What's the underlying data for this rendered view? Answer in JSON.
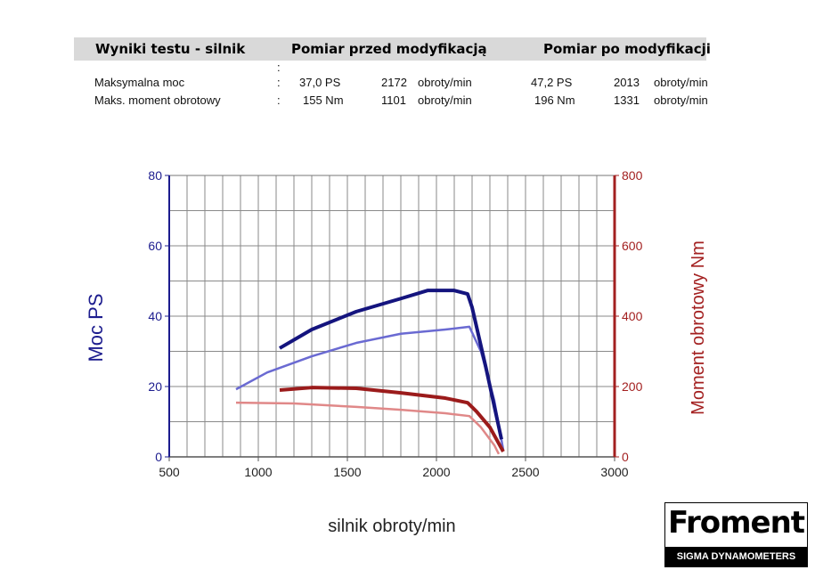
{
  "table": {
    "headers": [
      "Wyniki testu - silnik",
      "Pomiar przed modyfikacją",
      "Pomiar po modyfikacji"
    ],
    "marker": ":",
    "rows": [
      [
        "Maksymalna moc",
        ":",
        "37,0 PS",
        "2172",
        "obroty/min",
        "47,2 PS",
        "2013",
        "obroty/min"
      ],
      [
        "Maks. moment obrotowy",
        ":",
        "155 Nm",
        "1101",
        "obroty/min",
        "196 Nm",
        "1331",
        "obroty/min"
      ]
    ]
  },
  "chart_data": {
    "type": "line",
    "xlabel": "silnik obroty/min",
    "ylabel": "Moc PS",
    "y2label": "Moment obrotowy Nm",
    "xlim": [
      500,
      3000
    ],
    "xticks": [
      500,
      1000,
      1500,
      2000,
      2500,
      3000
    ],
    "ylim": [
      0,
      80
    ],
    "yticks": [
      0,
      20,
      40,
      60,
      80
    ],
    "y2lim": [
      0,
      800
    ],
    "y2ticks": [
      0,
      200,
      400,
      600,
      800
    ],
    "grid": true,
    "xgrid": [
      600,
      700,
      800,
      900,
      1000,
      1100,
      1200,
      1300,
      1400,
      1500,
      1600,
      1700,
      1800,
      1900,
      2000,
      2100,
      2200,
      2300,
      2400,
      2500,
      2600,
      2700,
      2800,
      2900
    ],
    "ygrid": [
      10,
      20,
      30,
      40,
      50,
      60,
      70
    ],
    "ycolor": "#1c1c8e",
    "y2color": "#a32020",
    "series": [
      {
        "color": "#6a6ad2",
        "x": [
          875,
          1050,
          1300,
          1550,
          1800,
          2050,
          2185,
          2250,
          2325,
          2375
        ],
        "values": [
          19.2,
          24,
          28.6,
          32.4,
          35,
          36.2,
          37,
          29.9,
          16,
          2
        ]
      },
      {
        "color": "#14147e",
        "x": [
          1120,
          1300,
          1550,
          1800,
          1950,
          2100,
          2175,
          2200,
          2275,
          2365
        ],
        "values": [
          30.9,
          36.2,
          41.3,
          45,
          47.3,
          47.3,
          46.3,
          42.5,
          26,
          5
        ]
      },
      {
        "color": "#e08888",
        "axis": "y2",
        "x": [
          875,
          1200,
          1550,
          1800,
          2050,
          2185,
          2250,
          2325,
          2350
        ],
        "values": [
          154,
          152,
          142,
          134,
          124,
          116,
          84,
          33,
          8
        ]
      },
      {
        "color": "#9b1b1b",
        "axis": "y2",
        "x": [
          1120,
          1300,
          1550,
          1800,
          2050,
          2175,
          2225,
          2300,
          2375
        ],
        "values": [
          190,
          197,
          195,
          182,
          167,
          154,
          129,
          84,
          15
        ]
      }
    ]
  },
  "logo": {
    "name": "Froment",
    "tagline": "SIGMA DYNAMOMETERS"
  }
}
